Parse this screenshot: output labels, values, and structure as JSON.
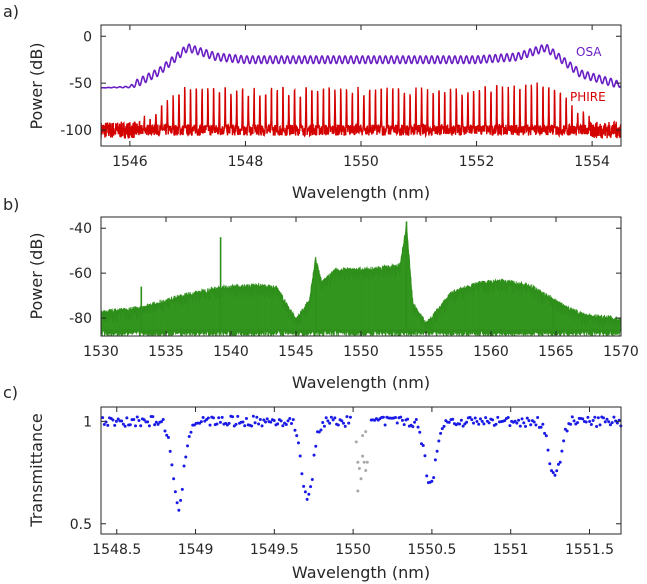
{
  "chart_data": [
    {
      "panel_label": "a)",
      "type": "line",
      "xlabel": "Wavelength (nm)",
      "ylabel": "Power (dB)",
      "xlim": [
        1545.5,
        1554.5
      ],
      "ylim": [
        -117,
        12
      ],
      "xticks": [
        "1546",
        "1548",
        "1550",
        "1552",
        "1554"
      ],
      "xtick_values": [
        1546,
        1548,
        1550,
        1552,
        1554
      ],
      "yticks": [
        "-100",
        "-50",
        "0"
      ],
      "ytick_values": [
        -100,
        -50,
        0
      ],
      "grid": false,
      "legend_placement": "inline-right",
      "series": [
        {
          "name": "OSA",
          "color": "#6a1fc4",
          "baseline_db": -55,
          "flat_top_db": -25,
          "edge_peak_db": -12,
          "edge_peak_wavelengths_nm": [
            1547.0,
            1553.2
          ],
          "ripple_period_nm": 0.1,
          "ripple_amplitude_db": 4,
          "x": [
            1545.5,
            1546.0,
            1546.5,
            1547.0,
            1547.5,
            1548,
            1550,
            1552,
            1552.7,
            1553.2,
            1553.8,
            1554.5
          ],
          "y": [
            -55,
            -54,
            -38,
            -12,
            -22,
            -25,
            -25,
            -25,
            -22,
            -12,
            -40,
            -52
          ]
        },
        {
          "name": "PHIRE",
          "color": "#d40000",
          "floor_db": -100,
          "peak_db": -50,
          "edge_peak_db": -48,
          "peak_spacing_nm": 0.1,
          "x": [
            1545.5,
            1546.0,
            1546.5,
            1547.0,
            1548,
            1550,
            1552,
            1553.2,
            1554.0,
            1554.5
          ],
          "y": [
            -100,
            -98,
            -75,
            -52,
            -55,
            -55,
            -55,
            -48,
            -92,
            -100
          ]
        }
      ]
    },
    {
      "panel_label": "b)",
      "type": "line",
      "xlabel": "Wavelength (nm)",
      "ylabel": "Power (dB)",
      "xlim": [
        1530,
        1570
      ],
      "ylim": [
        -88,
        -35
      ],
      "xticks": [
        "1530",
        "1535",
        "1540",
        "1545",
        "1550",
        "1555",
        "1560",
        "1565",
        "1570"
      ],
      "xtick_values": [
        1530,
        1535,
        1540,
        1545,
        1550,
        1555,
        1560,
        1565,
        1570
      ],
      "yticks": [
        "-80",
        "-60",
        "-40"
      ],
      "ytick_values": [
        -80,
        -60,
        -40
      ],
      "grid": false,
      "series": [
        {
          "color": "#2f8f1b",
          "noise_floor_db": -85,
          "envelope_wavelengths_nm": [
            1530,
            1533,
            1536,
            1539,
            1542,
            1543.5,
            1545,
            1546,
            1546.5,
            1547,
            1548,
            1550,
            1552,
            1553,
            1553.5,
            1554,
            1555,
            1557,
            1559,
            1561,
            1563,
            1565,
            1567,
            1570
          ],
          "envelope_db": [
            -79,
            -77,
            -72,
            -68,
            -67,
            -68,
            -82,
            -74,
            -55,
            -66,
            -60,
            -60,
            -59,
            -58,
            -40,
            -75,
            -84,
            -70,
            -66,
            -65,
            -67,
            -74,
            -80,
            -82
          ],
          "spikes_nm": [
            1533.1,
            1539.2,
            1546.5,
            1553.5,
            1564.8
          ],
          "spikes_db": [
            -66,
            -44,
            -55,
            -37,
            -72
          ]
        }
      ]
    },
    {
      "panel_label": "c)",
      "type": "scatter",
      "xlabel": "Wavelength (nm)",
      "ylabel": "Transmittance",
      "xlim": [
        1548.4,
        1551.7
      ],
      "ylim": [
        0.45,
        1.07
      ],
      "xticks": [
        "1548.5",
        "1549",
        "1549.5",
        "1550",
        "1550.5",
        "1551",
        "1551.5"
      ],
      "xtick_values": [
        1548.5,
        1549,
        1549.5,
        1550,
        1550.5,
        1551,
        1551.5
      ],
      "yticks": [
        "0.5",
        "1"
      ],
      "ytick_values": [
        0.5,
        1
      ],
      "grid": false,
      "series": [
        {
          "color": "#1a1ae6",
          "baseline": 1.0,
          "dip_centers_nm": [
            1548.89,
            1549.71,
            1550.49,
            1551.28
          ],
          "dip_minima": [
            0.58,
            0.62,
            0.7,
            0.72
          ],
          "dip_width_nm": 0.05,
          "point_spacing_nm": 0.011
        },
        {
          "color": "#a9a9a9",
          "x": [
            1550.02,
            1550.03,
            1550.04,
            1550.05,
            1550.06,
            1550.07,
            1550.08,
            1550.09,
            1550.03,
            1550.06,
            1550.08
          ],
          "y": [
            0.9,
            0.8,
            0.77,
            0.72,
            0.83,
            0.8,
            0.76,
            0.8,
            0.66,
            0.93,
            0.95
          ]
        }
      ]
    }
  ]
}
